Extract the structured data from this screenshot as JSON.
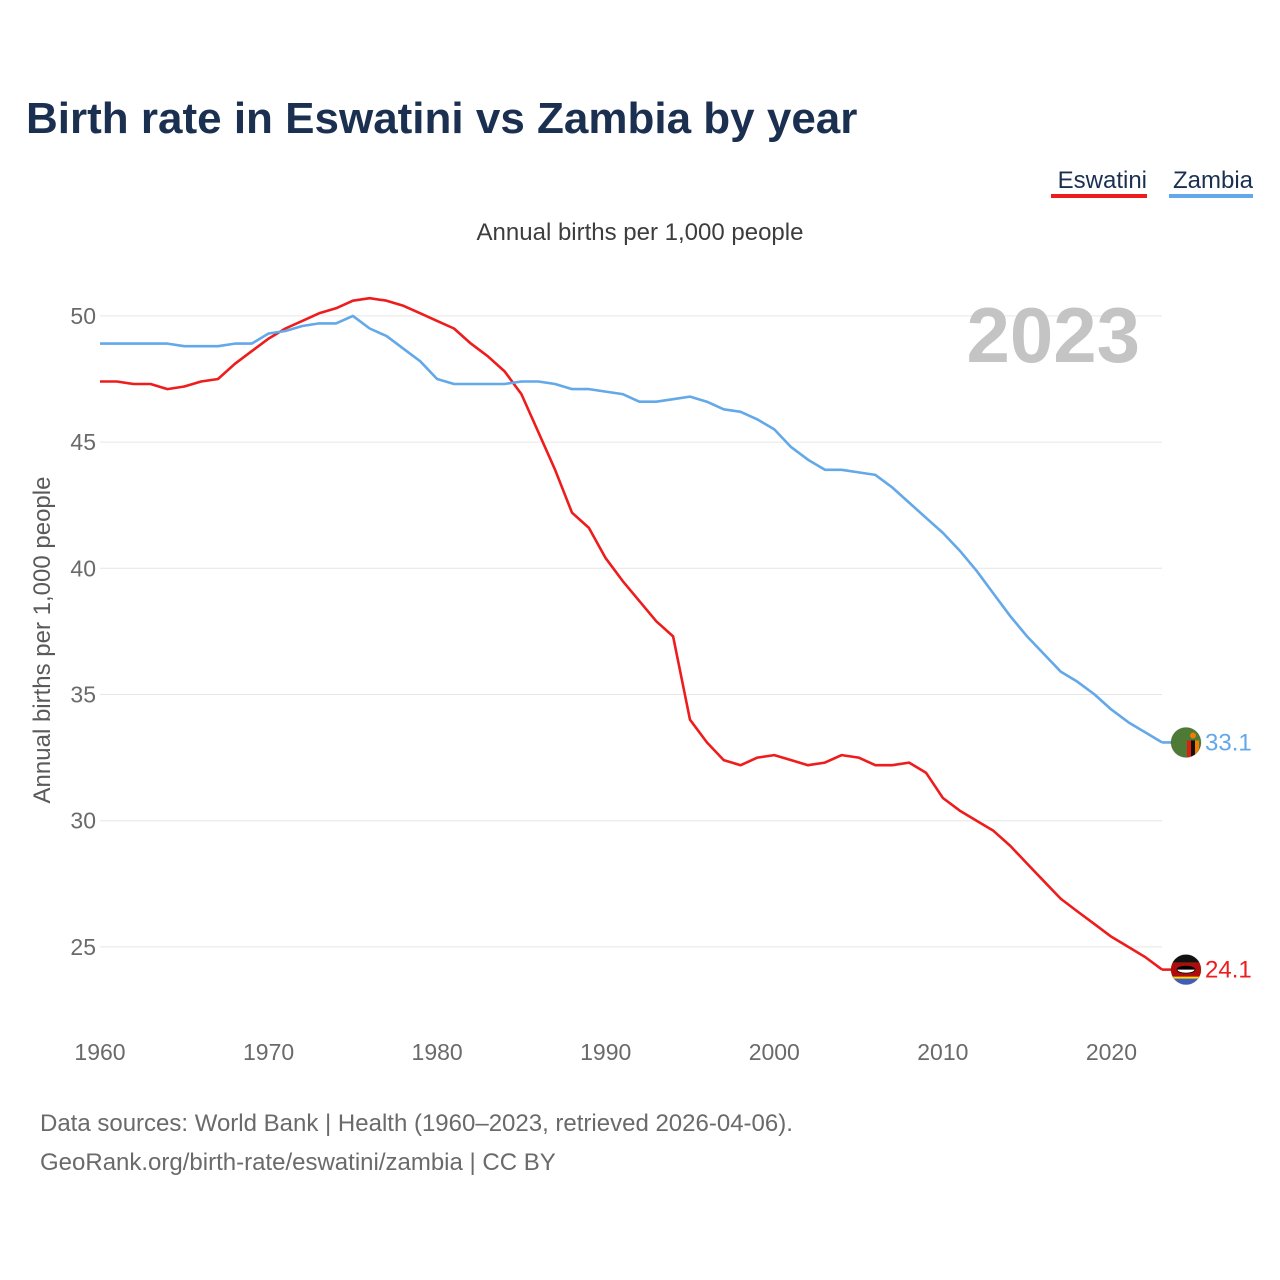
{
  "chart_data": {
    "type": "line",
    "title": "Birth rate in Eswatini vs Zambia by year",
    "subtitle": "Annual births per 1,000 people",
    "ylabel": "Annual births per 1,000 people",
    "xlabel": "",
    "highlight_year": "2023",
    "xlim": [
      1960,
      2023
    ],
    "ylim": [
      22.5,
      51.5
    ],
    "x_ticks": [
      1960,
      1970,
      1980,
      1990,
      2000,
      2010,
      2020
    ],
    "y_ticks": [
      25,
      30,
      35,
      40,
      45,
      50
    ],
    "x": [
      1960,
      1961,
      1962,
      1963,
      1964,
      1965,
      1966,
      1967,
      1968,
      1969,
      1970,
      1971,
      1972,
      1973,
      1974,
      1975,
      1976,
      1977,
      1978,
      1979,
      1980,
      1981,
      1982,
      1983,
      1984,
      1985,
      1986,
      1987,
      1988,
      1989,
      1990,
      1991,
      1992,
      1993,
      1994,
      1995,
      1996,
      1997,
      1998,
      1999,
      2000,
      2001,
      2002,
      2003,
      2004,
      2005,
      2006,
      2007,
      2008,
      2009,
      2010,
      2011,
      2012,
      2013,
      2014,
      2015,
      2016,
      2017,
      2018,
      2019,
      2020,
      2021,
      2022,
      2023
    ],
    "series": [
      {
        "name": "Eswatini",
        "color": "#ee1c1c",
        "end_label": "24.1",
        "icon": "eswatini-flag-icon",
        "values": [
          47.4,
          47.4,
          47.3,
          47.3,
          47.1,
          47.2,
          47.4,
          47.5,
          48.1,
          48.6,
          49.1,
          49.5,
          49.8,
          50.1,
          50.3,
          50.6,
          50.7,
          50.6,
          50.4,
          50.1,
          49.8,
          49.5,
          48.9,
          48.4,
          47.8,
          46.9,
          45.4,
          43.9,
          42.2,
          41.6,
          40.4,
          39.5,
          38.7,
          37.9,
          37.3,
          34.0,
          33.1,
          32.4,
          32.2,
          32.5,
          32.6,
          32.4,
          32.2,
          32.3,
          32.6,
          32.5,
          32.2,
          32.2,
          32.3,
          31.9,
          30.9,
          30.4,
          30.0,
          29.6,
          29.0,
          28.3,
          27.6,
          26.9,
          26.4,
          25.9,
          25.4,
          25.0,
          24.6,
          24.1
        ]
      },
      {
        "name": "Zambia",
        "color": "#63a8e8",
        "end_label": "33.1",
        "icon": "zambia-flag-icon",
        "values": [
          48.9,
          48.9,
          48.9,
          48.9,
          48.9,
          48.8,
          48.8,
          48.8,
          48.9,
          48.9,
          49.3,
          49.4,
          49.6,
          49.7,
          49.7,
          50.0,
          49.5,
          49.2,
          48.7,
          48.2,
          47.5,
          47.3,
          47.3,
          47.3,
          47.3,
          47.4,
          47.4,
          47.3,
          47.1,
          47.1,
          47.0,
          46.9,
          46.6,
          46.6,
          46.7,
          46.8,
          46.6,
          46.3,
          46.2,
          45.9,
          45.5,
          44.8,
          44.3,
          43.9,
          43.9,
          43.8,
          43.7,
          43.2,
          42.6,
          42.0,
          41.4,
          40.7,
          39.9,
          39.0,
          38.1,
          37.3,
          36.6,
          35.9,
          35.5,
          35.0,
          34.4,
          33.9,
          33.5,
          33.1
        ]
      }
    ]
  },
  "source": {
    "line1": "Data sources: World Bank | Health (1960–2023, retrieved 2026-04-06).",
    "line2": "GeoRank.org/birth-rate/eswatini/zambia | CC BY"
  }
}
